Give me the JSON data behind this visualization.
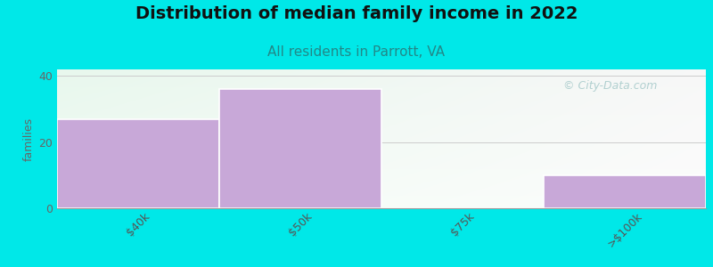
{
  "title": "Distribution of median family income in 2022",
  "subtitle": "All residents in Parrott, VA",
  "ylabel": "families",
  "categories": [
    "$40k",
    "$50k",
    "$75k",
    ">$100k"
  ],
  "values": [
    27,
    36,
    0,
    10
  ],
  "bar_color": "#c8a8d8",
  "bar_edge_color": "#ffffff",
  "background_color": "#00e8e8",
  "plot_bg_color_topleft": "#e8f8ee",
  "plot_bg_color_right": "#f8f8f8",
  "ylim": [
    0,
    42
  ],
  "yticks": [
    0,
    20,
    40
  ],
  "title_fontsize": 14,
  "title_fontweight": "bold",
  "subtitle_fontsize": 11,
  "subtitle_color": "#228888",
  "ylabel_fontsize": 9,
  "watermark_text": "© City-Data.com",
  "watermark_color": "#aacccc",
  "grid_color": "#cccccc",
  "bar_width": 1.0
}
